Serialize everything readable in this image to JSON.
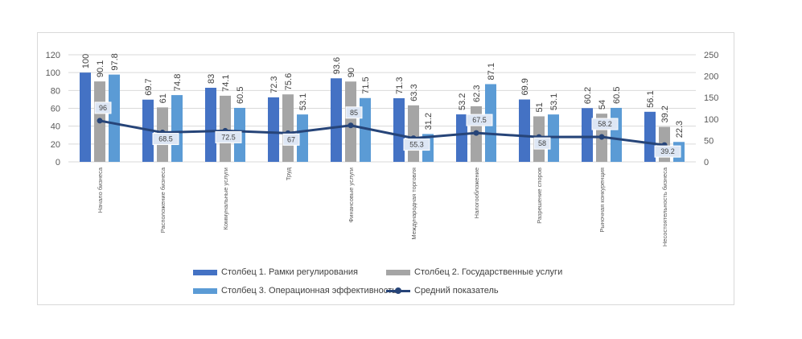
{
  "chart_data": {
    "type": "bar+line",
    "categories": [
      "Начало бизнеса",
      "Расположение бизнеса",
      "Коммунальные услуги",
      "Труд",
      "Финансовые услуги",
      "Международная торговля",
      "Налогообложение",
      "Разрешение споров",
      "Рыночная конкуренция",
      "Несостоятельность бизнеса"
    ],
    "series": [
      {
        "name": "Столбец 1. Рамки регулирования",
        "type": "bar",
        "axis": "left",
        "color": "#4472c4",
        "values": [
          100,
          69.7,
          83,
          72.3,
          93.6,
          71.3,
          53.2,
          69.9,
          60.2,
          56.1
        ]
      },
      {
        "name": "Столбец 2. Государственные услуги",
        "type": "bar",
        "axis": "left",
        "color": "#a5a5a5",
        "values": [
          90.1,
          61,
          74.1,
          75.6,
          90,
          63.3,
          62.3,
          51,
          54,
          39.2
        ]
      },
      {
        "name": "Столбец 3. Операционная эффективность",
        "type": "bar",
        "axis": "left",
        "color": "#5b9bd5",
        "values": [
          97.8,
          74.8,
          60.5,
          53.1,
          71.5,
          31.2,
          87.1,
          53.1,
          60.5,
          22.3
        ]
      },
      {
        "name": "Средний показатель",
        "type": "line",
        "axis": "right",
        "color": "#264478",
        "values": [
          96,
          68.5,
          72.5,
          67,
          85,
          55.3,
          67.5,
          58,
          58.2,
          39.2
        ]
      }
    ],
    "yleft": {
      "min": 0,
      "max": 120,
      "ticks": [
        0,
        20,
        40,
        60,
        80,
        100,
        120
      ]
    },
    "yright": {
      "min": 0,
      "max": 250,
      "ticks": [
        0,
        50,
        100,
        150,
        200,
        250
      ]
    },
    "grid": true,
    "legend": "bottom"
  }
}
